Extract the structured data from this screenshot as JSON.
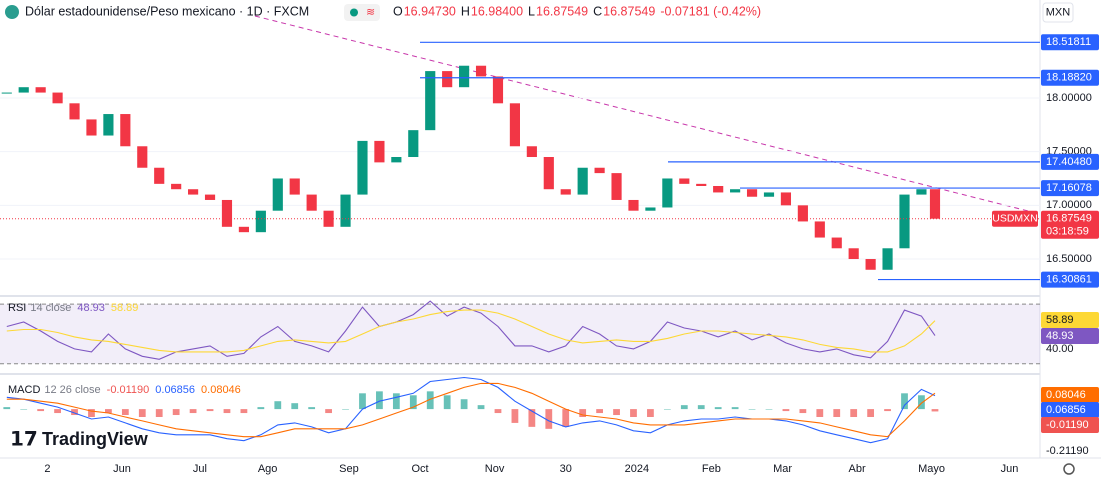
{
  "header": {
    "title": "Dólar estadounidense/Peso mexicano · 1D · FXCM",
    "ohlc_keys": [
      "O",
      "H",
      "L",
      "C"
    ],
    "ohlc_values": [
      "16.94730",
      "16.98400",
      "16.87549",
      "16.87549"
    ],
    "change": "-0.07181 (-0.42%)",
    "currency": "MXN",
    "logo": "TradingView"
  },
  "chart_data": [
    {
      "type": "candlestick",
      "symbol": "USDMXN",
      "countdown": "03:18:59",
      "up_color": "#089981",
      "down_color": "#f23645",
      "x": [
        -12,
        -7,
        -2,
        3,
        8,
        13,
        18,
        23,
        28,
        33,
        38,
        43,
        48,
        53,
        58,
        63,
        68,
        73,
        78,
        83,
        88,
        93,
        98,
        103,
        108,
        113,
        118,
        123,
        128,
        133,
        138,
        143,
        148,
        153,
        158,
        163,
        168,
        173,
        178,
        183,
        188,
        193,
        198,
        203,
        208,
        213,
        218,
        223,
        228,
        233,
        238,
        243,
        248,
        253,
        258,
        262
      ],
      "series": [
        {
          "name": "USDMXN",
          "values": [
            18.05,
            18.1,
            18.05,
            17.95,
            17.8,
            17.65,
            17.85,
            17.55,
            17.35,
            17.2,
            17.15,
            17.1,
            17.05,
            16.8,
            16.75,
            16.95,
            17.25,
            17.1,
            16.95,
            16.8,
            17.1,
            17.6,
            17.4,
            17.45,
            17.7,
            18.25,
            18.1,
            18.3,
            18.2,
            17.95,
            17.55,
            17.45,
            17.15,
            17.1,
            17.35,
            17.3,
            17.05,
            16.95,
            16.98,
            17.25,
            17.2,
            17.18,
            17.12,
            17.15,
            17.08,
            17.12,
            17.0,
            16.85,
            16.7,
            16.6,
            16.5,
            16.4,
            16.6,
            17.1,
            17.15,
            16.87549
          ]
        }
      ],
      "xlim": [
        -14,
        293
      ],
      "xticks": [
        {
          "value": 0,
          "label": "2"
        },
        {
          "value": 22,
          "label": "Jun"
        },
        {
          "value": 45,
          "label": "Jul"
        },
        {
          "value": 65,
          "label": "Ago"
        },
        {
          "value": 89,
          "label": "Sep"
        },
        {
          "value": 110,
          "label": "Oct"
        },
        {
          "value": 132,
          "label": "Nov"
        },
        {
          "value": 153,
          "label": "30"
        },
        {
          "value": 174,
          "label": "2024"
        },
        {
          "value": 196,
          "label": "Feb"
        },
        {
          "value": 217,
          "label": "Mar"
        },
        {
          "value": 239,
          "label": "Abr"
        },
        {
          "value": 261,
          "label": "Mayo"
        },
        {
          "value": 284,
          "label": "Jun"
        }
      ],
      "ylim": [
        16.165,
        18.912
      ],
      "yticks": [
        {
          "value": 18,
          "label": "18.00000"
        },
        {
          "value": 17.5,
          "label": "17.50000"
        },
        {
          "value": 17,
          "label": "17.00000"
        },
        {
          "value": 16.5,
          "label": "16.50000"
        }
      ],
      "levels": [
        18.51811,
        {
          "value": 18.1882,
          "label": "18.18820"
        },
        {
          "value": 17.4048,
          "label": "17.40480"
        },
        17.16078,
        16.30861
      ],
      "level_color": "#2962ff"
    },
    {
      "type": "line",
      "title": "RSI",
      "params": "14 close",
      "band": [
        30,
        70
      ],
      "band_color": "#7e57c2",
      "x": [
        -12,
        -7,
        -2,
        3,
        8,
        13,
        18,
        23,
        28,
        33,
        38,
        43,
        48,
        53,
        58,
        63,
        68,
        73,
        78,
        83,
        88,
        93,
        98,
        103,
        108,
        113,
        118,
        123,
        128,
        133,
        138,
        143,
        148,
        153,
        158,
        163,
        168,
        173,
        178,
        183,
        188,
        193,
        198,
        203,
        208,
        213,
        218,
        223,
        228,
        233,
        238,
        243,
        248,
        253,
        258,
        262
      ],
      "series": [
        {
          "name": "RSI",
          "color": "#7e57c2",
          "values": [
            55,
            58,
            52,
            45,
            40,
            38,
            50,
            40,
            35,
            33,
            38,
            40,
            42,
            35,
            37,
            48,
            55,
            45,
            42,
            38,
            52,
            68,
            55,
            58,
            63,
            72,
            62,
            68,
            64,
            55,
            42,
            42,
            38,
            42,
            55,
            50,
            42,
            40,
            45,
            58,
            54,
            52,
            48,
            52,
            46,
            50,
            44,
            40,
            38,
            40,
            36,
            34,
            45,
            66,
            62,
            48.93
          ]
        },
        {
          "color": "#fdd835",
          "values": [
            52,
            53,
            53,
            51,
            48,
            46,
            45,
            43,
            41,
            39,
            38,
            38,
            38,
            38,
            39,
            42,
            45,
            46,
            45,
            44,
            45,
            50,
            55,
            58,
            60,
            63,
            65,
            66,
            66,
            64,
            60,
            55,
            50,
            46,
            44,
            45,
            46,
            45,
            45,
            47,
            50,
            52,
            52,
            51,
            50,
            49,
            48,
            46,
            43,
            41,
            40,
            38,
            38,
            42,
            50,
            58.89
          ]
        }
      ],
      "ylim": [
        24.5,
        74.1
      ],
      "yticks": [
        {
          "value": 40,
          "label": "40.00"
        }
      ]
    },
    {
      "type": "macd",
      "title": "MACD",
      "params": "12 26 close",
      "x": [
        -12,
        -7,
        -2,
        3,
        8,
        13,
        18,
        23,
        28,
        33,
        38,
        43,
        48,
        53,
        58,
        63,
        68,
        73,
        78,
        83,
        88,
        93,
        98,
        103,
        108,
        113,
        118,
        123,
        128,
        133,
        138,
        143,
        148,
        153,
        158,
        163,
        168,
        173,
        178,
        183,
        188,
        193,
        198,
        203,
        208,
        213,
        218,
        223,
        228,
        233,
        238,
        243,
        248,
        253,
        258,
        262
      ],
      "series": [
        {
          "type": "bar",
          "up_color": "#26a69a",
          "down_color": "#ef5350",
          "values": [
            0.01,
            0,
            -0.01,
            -0.02,
            -0.03,
            -0.04,
            -0.02,
            -0.03,
            -0.04,
            -0.04,
            -0.03,
            -0.02,
            -0.01,
            -0.02,
            -0.02,
            0.01,
            0.04,
            0.03,
            0.01,
            -0.02,
            0,
            0.08,
            0.09,
            0.08,
            0.07,
            0.09,
            0.07,
            0.05,
            0.02,
            -0.02,
            -0.07,
            -0.09,
            -0.1,
            -0.09,
            -0.04,
            -0.02,
            -0.03,
            -0.04,
            -0.04,
            0,
            0.02,
            0.02,
            0.01,
            0.01,
            0,
            0,
            -0.01,
            -0.02,
            -0.04,
            -0.04,
            -0.04,
            -0.04,
            -0.01,
            0.08,
            0.07,
            -0.0119
          ],
          "value_labels": [
            null,
            null,
            null,
            null,
            null,
            null,
            null,
            null,
            null,
            null,
            null,
            null,
            null,
            null,
            null,
            null,
            null,
            null,
            null,
            null,
            null,
            null,
            null,
            null,
            null,
            null,
            null,
            null,
            null,
            null,
            null,
            null,
            null,
            null,
            null,
            null,
            null,
            null,
            null,
            null,
            null,
            null,
            null,
            null,
            null,
            null,
            null,
            null,
            null,
            null,
            null,
            null,
            null,
            null,
            null,
            "-0.01190"
          ]
        },
        {
          "color": "#2962ff",
          "values": [
            0.06,
            0.05,
            0.03,
            0.01,
            -0.02,
            -0.05,
            -0.04,
            -0.07,
            -0.1,
            -0.12,
            -0.13,
            -0.13,
            -0.13,
            -0.15,
            -0.16,
            -0.13,
            -0.08,
            -0.07,
            -0.09,
            -0.12,
            -0.1,
            0,
            0.04,
            0.06,
            0.08,
            0.14,
            0.15,
            0.16,
            0.15,
            0.11,
            0.04,
            -0.01,
            -0.06,
            -0.09,
            -0.07,
            -0.06,
            -0.08,
            -0.11,
            -0.12,
            -0.08,
            -0.06,
            -0.05,
            -0.05,
            -0.04,
            -0.05,
            -0.05,
            -0.06,
            -0.08,
            -0.11,
            -0.13,
            -0.15,
            -0.17,
            -0.15,
            0.02,
            0.1,
            0.06856
          ]
        },
        {
          "color": "#ff6d00",
          "values": [
            0.05,
            0.05,
            0.04,
            0.03,
            0.01,
            -0.01,
            -0.02,
            -0.04,
            -0.06,
            -0.08,
            -0.1,
            -0.11,
            -0.12,
            -0.13,
            -0.14,
            -0.14,
            -0.12,
            -0.1,
            -0.1,
            -0.1,
            -0.1,
            -0.08,
            -0.05,
            -0.02,
            0.01,
            0.05,
            0.08,
            0.11,
            0.13,
            0.13,
            0.11,
            0.08,
            0.04,
            0,
            -0.03,
            -0.04,
            -0.05,
            -0.07,
            -0.08,
            -0.08,
            -0.08,
            -0.07,
            -0.06,
            -0.05,
            -0.05,
            -0.05,
            -0.05,
            -0.06,
            -0.07,
            -0.09,
            -0.11,
            -0.13,
            -0.14,
            -0.06,
            0.03,
            0.08046
          ]
        }
      ],
      "ylim": [
        -0.2427,
        0.1677
      ],
      "yticks": [
        {
          "value": -0.2119,
          "label": "-0.21190"
        }
      ]
    }
  ]
}
